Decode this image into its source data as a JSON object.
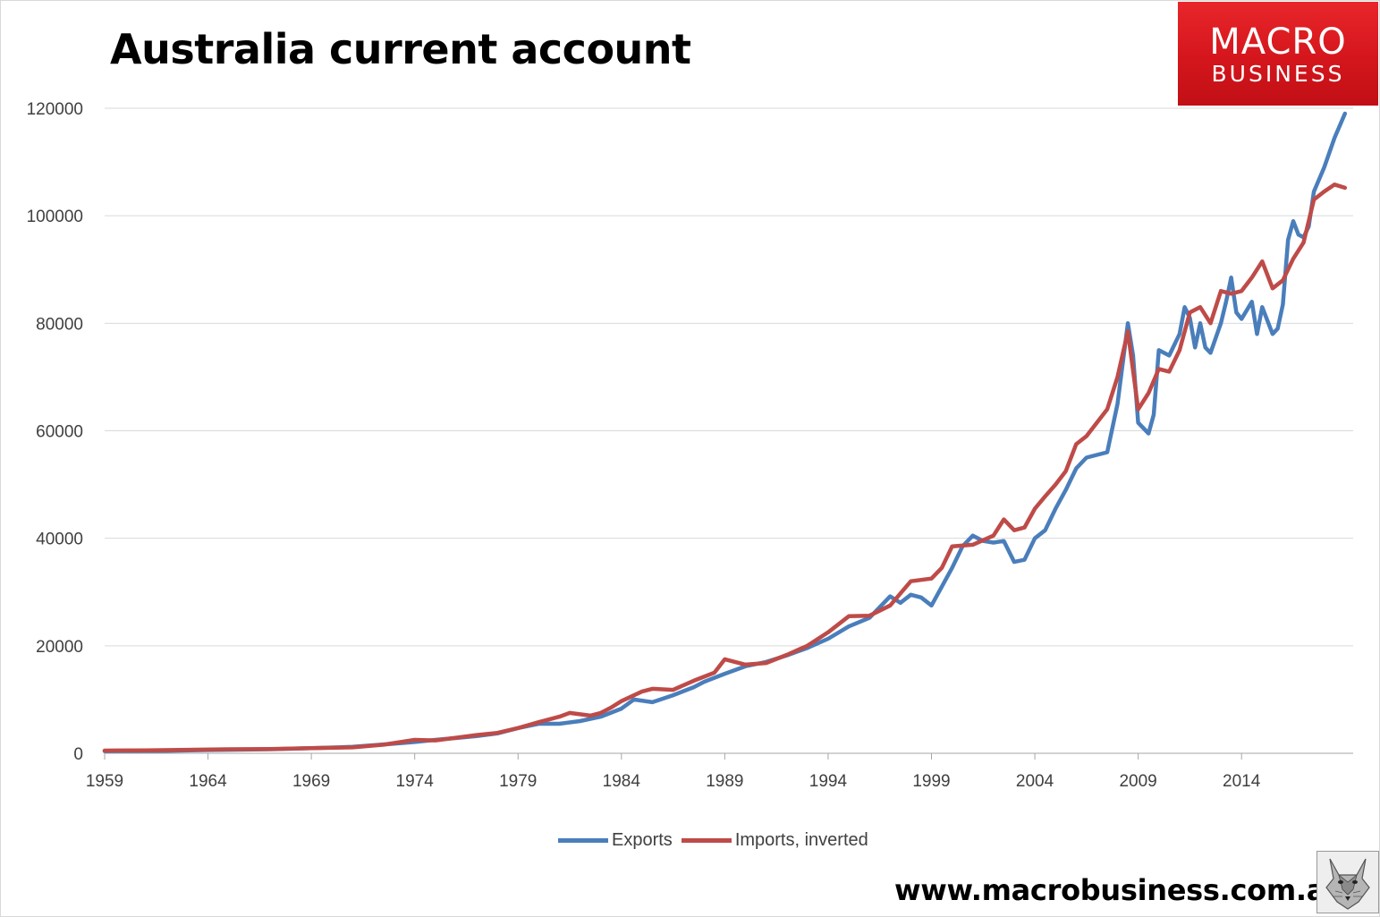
{
  "header": {
    "title": "Australia current account"
  },
  "logo": {
    "line1": "MACRO",
    "line2": "BUSINESS"
  },
  "footer": {
    "website": "www.macrobusiness.com.au"
  },
  "colors": {
    "exports": "#4a7ebb",
    "imports": "#be4b48",
    "grid": "#d9d9d9",
    "axis_text": "#404040"
  },
  "chart_data": {
    "type": "line",
    "title": "Australia current account",
    "xlim": [
      1959,
      2019.4
    ],
    "ylim": [
      0,
      120000
    ],
    "x_ticks": [
      "1959",
      "1964",
      "1969",
      "1974",
      "1979",
      "1984",
      "1989",
      "1994",
      "1999",
      "2004",
      "2009",
      "2014"
    ],
    "y_ticks": [
      "0",
      "20000",
      "40000",
      "60000",
      "80000",
      "100000",
      "120000"
    ],
    "grid": "horizontal",
    "legend_position": "bottom",
    "series": [
      {
        "name": "Exports",
        "color": "#4a7ebb",
        "points": [
          [
            1959,
            400
          ],
          [
            1962,
            450
          ],
          [
            1964,
            600
          ],
          [
            1967,
            750
          ],
          [
            1969,
            950
          ],
          [
            1971,
            1200
          ],
          [
            1973,
            1800
          ],
          [
            1974,
            2100
          ],
          [
            1975,
            2500
          ],
          [
            1977,
            3200
          ],
          [
            1978,
            3700
          ],
          [
            1979,
            4700
          ],
          [
            1980,
            5500
          ],
          [
            1981,
            5500
          ],
          [
            1982,
            6000
          ],
          [
            1983,
            6800
          ],
          [
            1984,
            8300
          ],
          [
            1984.6,
            10000
          ],
          [
            1985.5,
            9500
          ],
          [
            1986.5,
            10800
          ],
          [
            1987.5,
            12300
          ],
          [
            1988,
            13300
          ],
          [
            1989,
            14800
          ],
          [
            1990,
            16200
          ],
          [
            1991,
            17000
          ],
          [
            1992,
            18200
          ],
          [
            1993,
            19600
          ],
          [
            1994,
            21300
          ],
          [
            1995,
            23600
          ],
          [
            1996,
            25200
          ],
          [
            1997,
            29200
          ],
          [
            1997.5,
            28000
          ],
          [
            1998,
            29500
          ],
          [
            1998.5,
            29000
          ],
          [
            1999,
            27500
          ],
          [
            1999.5,
            31000
          ],
          [
            2000,
            34500
          ],
          [
            2000.5,
            38500
          ],
          [
            2001,
            40500
          ],
          [
            2001.5,
            39500
          ],
          [
            2002,
            39200
          ],
          [
            2002.5,
            39500
          ],
          [
            2003,
            35600
          ],
          [
            2003.5,
            36000
          ],
          [
            2004,
            40000
          ],
          [
            2004.5,
            41500
          ],
          [
            2005,
            45500
          ],
          [
            2005.5,
            49000
          ],
          [
            2006,
            53000
          ],
          [
            2006.5,
            55000
          ],
          [
            2007,
            55500
          ],
          [
            2007.5,
            56000
          ],
          [
            2008,
            65000
          ],
          [
            2008.5,
            80000
          ],
          [
            2008.75,
            74000
          ],
          [
            2009,
            61500
          ],
          [
            2009.5,
            59500
          ],
          [
            2009.75,
            63000
          ],
          [
            2010,
            75000
          ],
          [
            2010.5,
            74000
          ],
          [
            2011,
            78000
          ],
          [
            2011.25,
            83000
          ],
          [
            2011.5,
            81000
          ],
          [
            2011.75,
            75500
          ],
          [
            2012,
            80000
          ],
          [
            2012.25,
            75500
          ],
          [
            2012.5,
            74500
          ],
          [
            2013,
            80000
          ],
          [
            2013.25,
            84000
          ],
          [
            2013.5,
            88500
          ],
          [
            2013.75,
            82000
          ],
          [
            2014,
            80800
          ],
          [
            2014.5,
            84000
          ],
          [
            2014.75,
            78000
          ],
          [
            2015,
            83000
          ],
          [
            2015.5,
            78000
          ],
          [
            2015.75,
            79000
          ],
          [
            2016,
            83500
          ],
          [
            2016.25,
            95500
          ],
          [
            2016.5,
            99000
          ],
          [
            2016.75,
            96500
          ],
          [
            2017,
            96000
          ],
          [
            2017.25,
            98000
          ],
          [
            2017.5,
            104500
          ],
          [
            2018,
            109000
          ],
          [
            2018.5,
            114500
          ],
          [
            2019,
            119000
          ]
        ]
      },
      {
        "name": "Imports, inverted",
        "color": "#be4b48",
        "points": [
          [
            1959,
            500
          ],
          [
            1961,
            550
          ],
          [
            1963,
            650
          ],
          [
            1965,
            750
          ],
          [
            1967,
            800
          ],
          [
            1969,
            950
          ],
          [
            1971,
            1100
          ],
          [
            1972.5,
            1600
          ],
          [
            1974,
            2500
          ],
          [
            1975,
            2400
          ],
          [
            1977,
            3400
          ],
          [
            1978,
            3800
          ],
          [
            1979,
            4700
          ],
          [
            1980,
            5800
          ],
          [
            1981,
            6800
          ],
          [
            1981.5,
            7500
          ],
          [
            1982.5,
            7000
          ],
          [
            1983,
            7500
          ],
          [
            1983.5,
            8500
          ],
          [
            1984,
            9700
          ],
          [
            1985,
            11500
          ],
          [
            1985.5,
            12000
          ],
          [
            1986.5,
            11800
          ],
          [
            1987.5,
            13500
          ],
          [
            1988.5,
            15000
          ],
          [
            1989,
            17500
          ],
          [
            1989.5,
            17000
          ],
          [
            1990,
            16500
          ],
          [
            1991,
            16800
          ],
          [
            1992,
            18300
          ],
          [
            1993,
            20000
          ],
          [
            1994,
            22500
          ],
          [
            1995,
            25500
          ],
          [
            1996,
            25600
          ],
          [
            1997,
            27500
          ],
          [
            1998,
            32000
          ],
          [
            1999,
            32500
          ],
          [
            1999.5,
            34500
          ],
          [
            2000,
            38500
          ],
          [
            2001,
            38800
          ],
          [
            2002,
            40500
          ],
          [
            2002.5,
            43500
          ],
          [
            2003,
            41500
          ],
          [
            2003.5,
            42000
          ],
          [
            2004,
            45500
          ],
          [
            2004.5,
            47800
          ],
          [
            2005,
            50000
          ],
          [
            2005.5,
            52500
          ],
          [
            2006,
            57500
          ],
          [
            2006.5,
            59000
          ],
          [
            2007,
            61500
          ],
          [
            2007.5,
            64000
          ],
          [
            2008,
            70000
          ],
          [
            2008.5,
            78500
          ],
          [
            2009,
            64000
          ],
          [
            2009.5,
            67000
          ],
          [
            2010,
            71500
          ],
          [
            2010.5,
            71000
          ],
          [
            2011,
            75000
          ],
          [
            2011.5,
            82000
          ],
          [
            2012,
            83000
          ],
          [
            2012.5,
            80000
          ],
          [
            2013,
            86000
          ],
          [
            2013.5,
            85500
          ],
          [
            2014,
            86000
          ],
          [
            2014.5,
            88500
          ],
          [
            2015,
            91500
          ],
          [
            2015.5,
            86500
          ],
          [
            2016,
            88000
          ],
          [
            2016.5,
            92000
          ],
          [
            2017,
            95000
          ],
          [
            2017.5,
            103000
          ],
          [
            2018,
            104500
          ],
          [
            2018.5,
            105800
          ],
          [
            2019,
            105200
          ]
        ]
      }
    ]
  }
}
